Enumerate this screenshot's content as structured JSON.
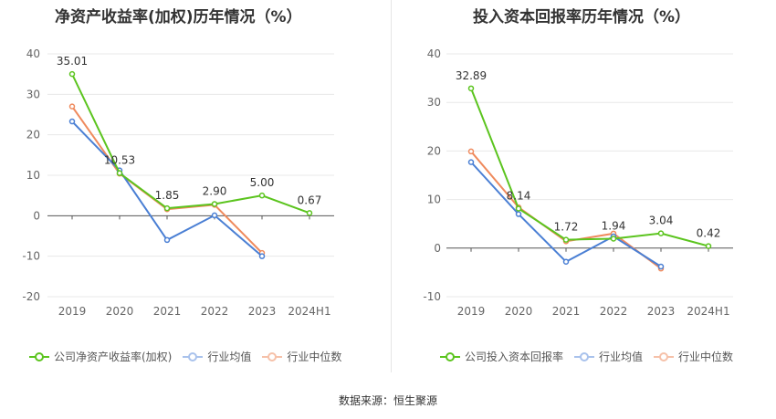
{
  "source_text": "数据来源：恒生聚源",
  "colors": {
    "company": "#5bc41e",
    "industry_avg": "#4a7fd4",
    "industry_median": "#ef8a5d"
  },
  "chart_data": [
    {
      "type": "line",
      "title": "净资产收益率(加权)历年情况（%）",
      "categories": [
        "2019",
        "2020",
        "2021",
        "2022",
        "2023",
        "2024H1"
      ],
      "yticks": [
        "40",
        "30",
        "20",
        "10",
        "0",
        "-10",
        "-20"
      ],
      "ylim": [
        -20,
        40
      ],
      "grid": true,
      "legend_position": "bottom-left",
      "series": [
        {
          "name": "公司净资产收益率(加权)",
          "values": [
            35.01,
            10.53,
            1.85,
            2.9,
            5.0,
            0.67
          ],
          "labels": [
            "35.01",
            "10.53",
            "1.85",
            "2.90",
            "5.00",
            "0.67"
          ]
        },
        {
          "name": "行业均值",
          "values": [
            23.3,
            11.2,
            -6.0,
            0.1,
            -10.0,
            null
          ]
        },
        {
          "name": "行业中位数",
          "values": [
            27.0,
            10.4,
            1.6,
            2.7,
            -9.2,
            null
          ]
        }
      ]
    },
    {
      "type": "line",
      "title": "投入资本回报率历年情况（%）",
      "categories": [
        "2019",
        "2020",
        "2021",
        "2022",
        "2023",
        "2024H1"
      ],
      "yticks": [
        "40",
        "30",
        "20",
        "10",
        "0",
        "-10"
      ],
      "ylim": [
        -10,
        40
      ],
      "grid": true,
      "legend_position": "bottom-left",
      "series": [
        {
          "name": "公司投入资本回报率",
          "values": [
            32.89,
            8.14,
            1.72,
            1.94,
            3.04,
            0.42
          ],
          "labels": [
            "32.89",
            "8.14",
            "1.72",
            "1.94",
            "3.04",
            "0.42"
          ]
        },
        {
          "name": "行业均值",
          "values": [
            17.7,
            7.0,
            -2.8,
            2.4,
            -3.8,
            null
          ]
        },
        {
          "name": "行业中位数",
          "values": [
            19.9,
            8.4,
            1.4,
            3.0,
            -4.2,
            null
          ]
        }
      ]
    }
  ]
}
